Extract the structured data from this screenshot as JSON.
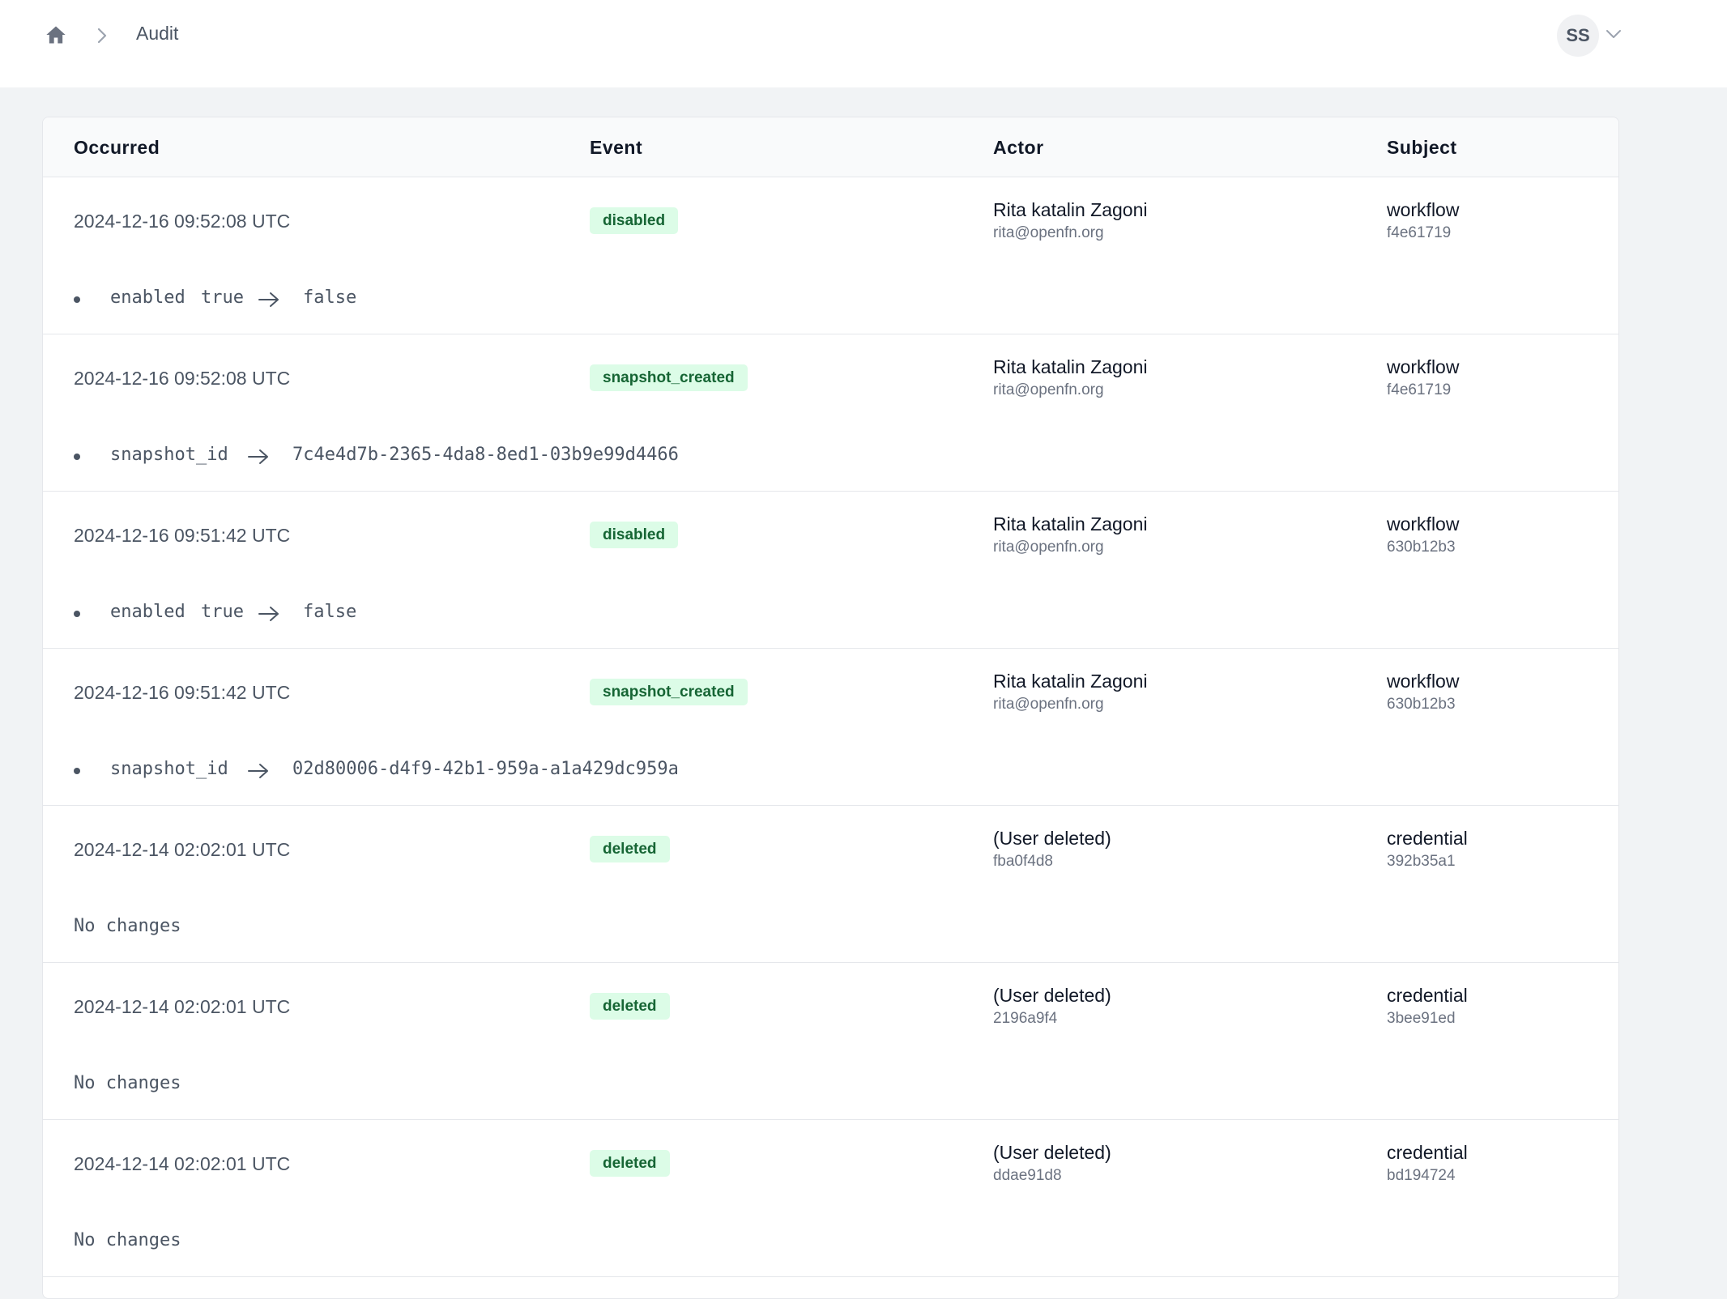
{
  "breadcrumb": {
    "current": "Audit"
  },
  "user": {
    "initials": "SS"
  },
  "table": {
    "headers": {
      "occurred": "Occurred",
      "event": "Event",
      "actor": "Actor",
      "subject": "Subject"
    },
    "rows": [
      {
        "occurred": "2024-12-16 09:52:08 UTC",
        "event": "disabled",
        "actor_name": "Rita katalin Zagoni",
        "actor_sub": "rita@openfn.org",
        "subject_type": "workflow",
        "subject_id": "f4e61719",
        "change_field": "enabled",
        "change_from": "true",
        "change_to": "false"
      },
      {
        "occurred": "2024-12-16 09:52:08 UTC",
        "event": "snapshot_created",
        "actor_name": "Rita katalin Zagoni",
        "actor_sub": "rita@openfn.org",
        "subject_type": "workflow",
        "subject_id": "f4e61719",
        "change_field": "snapshot_id",
        "change_to": "7c4e4d7b-2365-4da8-8ed1-03b9e99d4466"
      },
      {
        "occurred": "2024-12-16 09:51:42 UTC",
        "event": "disabled",
        "actor_name": "Rita katalin Zagoni",
        "actor_sub": "rita@openfn.org",
        "subject_type": "workflow",
        "subject_id": "630b12b3",
        "change_field": "enabled",
        "change_from": "true",
        "change_to": "false"
      },
      {
        "occurred": "2024-12-16 09:51:42 UTC",
        "event": "snapshot_created",
        "actor_name": "Rita katalin Zagoni",
        "actor_sub": "rita@openfn.org",
        "subject_type": "workflow",
        "subject_id": "630b12b3",
        "change_field": "snapshot_id",
        "change_to": "02d80006-d4f9-42b1-959a-a1a429dc959a"
      },
      {
        "occurred": "2024-12-14 02:02:01 UTC",
        "event": "deleted",
        "actor_name": "(User deleted)",
        "actor_sub": "fba0f4d8",
        "subject_type": "credential",
        "subject_id": "392b35a1",
        "no_changes": "No changes"
      },
      {
        "occurred": "2024-12-14 02:02:01 UTC",
        "event": "deleted",
        "actor_name": "(User deleted)",
        "actor_sub": "2196a9f4",
        "subject_type": "credential",
        "subject_id": "3bee91ed",
        "no_changes": "No changes"
      },
      {
        "occurred": "2024-12-14 02:02:01 UTC",
        "event": "deleted",
        "actor_name": "(User deleted)",
        "actor_sub": "ddae91d8",
        "subject_type": "credential",
        "subject_id": "bd194724",
        "no_changes": "No changes"
      }
    ]
  },
  "colors": {
    "badge_bg": "#dcfce7",
    "badge_text": "#166534",
    "page_bg": "#f1f3f5"
  }
}
